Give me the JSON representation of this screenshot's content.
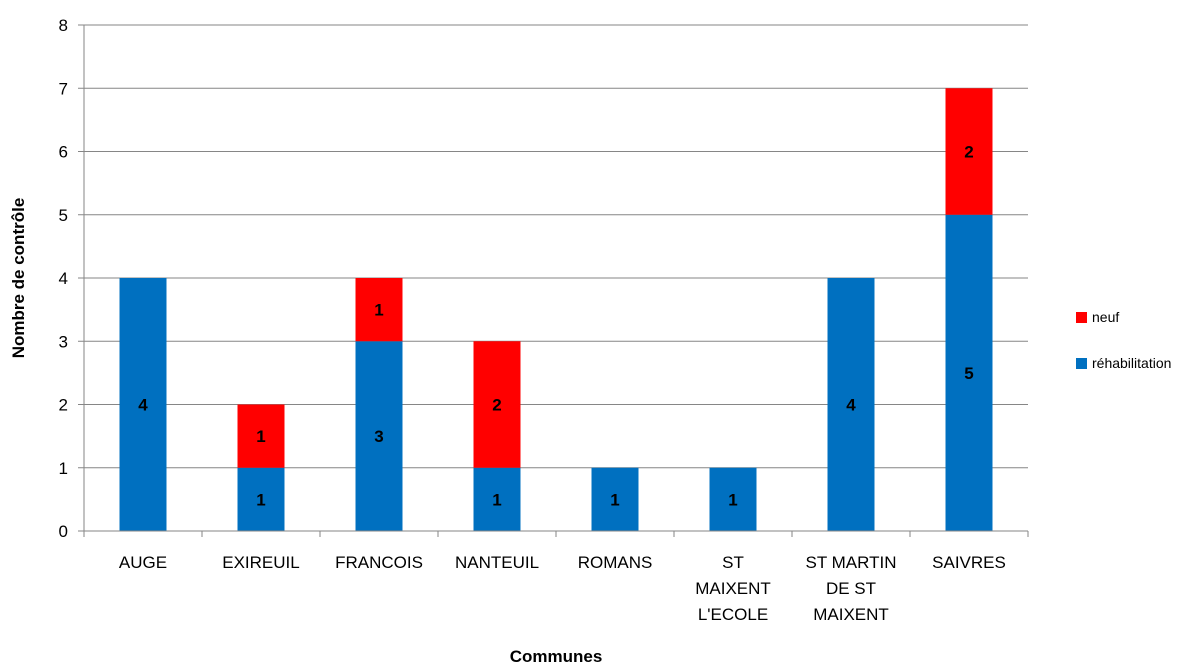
{
  "chart_data": {
    "type": "bar",
    "stacked": true,
    "categories": [
      [
        "AUGE"
      ],
      [
        "EXIREUIL"
      ],
      [
        "FRANCOIS"
      ],
      [
        "NANTEUIL"
      ],
      [
        "ROMANS"
      ],
      [
        "ST",
        "MAIXENT",
        "L'ECOLE"
      ],
      [
        "ST MARTIN",
        "DE ST",
        "MAIXENT"
      ],
      [
        "SAIVRES"
      ]
    ],
    "series": [
      {
        "name": "réhabilitation",
        "color": "#0070C0",
        "values": [
          4,
          1,
          3,
          1,
          1,
          1,
          4,
          5
        ]
      },
      {
        "name": "neuf",
        "color": "#FF0000",
        "values": [
          0,
          1,
          1,
          2,
          0,
          0,
          0,
          2
        ]
      }
    ],
    "xlabel": "Communes",
    "ylabel": "Nombre de contrôle",
    "ylim": [
      0,
      8
    ],
    "yticks": [
      "0",
      "1",
      "2",
      "3",
      "4",
      "5",
      "6",
      "7",
      "8"
    ],
    "grid": true,
    "legend_position": "right",
    "legend_order": [
      "neuf",
      "réhabilitation"
    ]
  }
}
